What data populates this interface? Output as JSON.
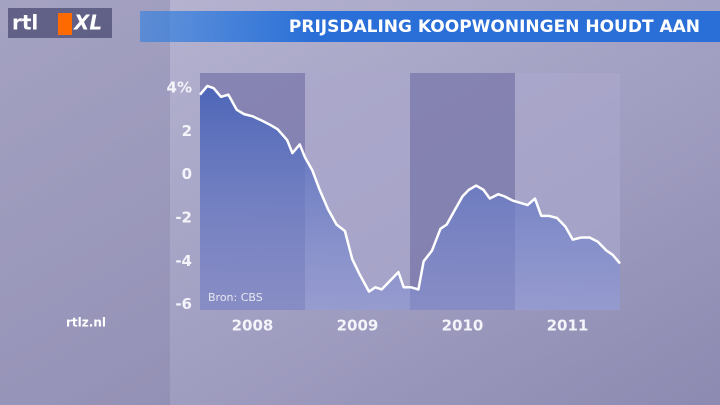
{
  "logo": {
    "brand": "rtl",
    "product": "XL"
  },
  "website": "rtlz.nl",
  "chart_data": {
    "type": "line",
    "title": "PRIJSDALING KOOPWONINGEN HOUDT AAN",
    "source": "Bron: CBS",
    "x": [
      2008.0,
      2008.07,
      2008.13,
      2008.2,
      2008.27,
      2008.35,
      2008.42,
      2008.5,
      2008.59,
      2008.67,
      2008.74,
      2008.83,
      2008.88,
      2008.95,
      2009.0,
      2009.07,
      2009.14,
      2009.22,
      2009.3,
      2009.38,
      2009.45,
      2009.52,
      2009.61,
      2009.67,
      2009.73,
      2009.81,
      2009.89,
      2009.94,
      2010.01,
      2010.08,
      2010.13,
      2010.21,
      2010.29,
      2010.35,
      2010.43,
      2010.5,
      2010.56,
      2010.63,
      2010.7,
      2010.76,
      2010.84,
      2010.9,
      2010.98,
      2011.05,
      2011.12,
      2011.19,
      2011.25,
      2011.32,
      2011.4,
      2011.48,
      2011.55,
      2011.63,
      2011.71,
      2011.79,
      2011.87,
      2011.93,
      2012.0
    ],
    "values": [
      3.7,
      4.1,
      4.0,
      3.6,
      3.7,
      3.0,
      2.8,
      2.7,
      2.5,
      2.3,
      2.1,
      1.6,
      1.0,
      1.4,
      0.8,
      0.2,
      -0.7,
      -1.6,
      -2.3,
      -2.6,
      -3.9,
      -4.6,
      -5.4,
      -5.2,
      -5.3,
      -4.9,
      -4.5,
      -5.2,
      -5.2,
      -5.3,
      -4.0,
      -3.5,
      -2.5,
      -2.3,
      -1.6,
      -1.0,
      -0.7,
      -0.5,
      -0.7,
      -1.1,
      -0.9,
      -1.0,
      -1.2,
      -1.3,
      -1.4,
      -1.1,
      -1.9,
      -1.9,
      -2.0,
      -2.4,
      -3.0,
      -2.9,
      -2.9,
      -3.1,
      -3.5,
      -3.7,
      -4.1
    ],
    "color": "#ffffff",
    "xlim": [
      2008,
      2012
    ],
    "xticks": [
      {
        "value": 2008.5,
        "label": "2008"
      },
      {
        "value": 2009.5,
        "label": "2009"
      },
      {
        "value": 2010.5,
        "label": "2010"
      },
      {
        "value": 2011.5,
        "label": "2011"
      }
    ],
    "ylim": [
      -6.25,
      4.7
    ],
    "yticks": [
      {
        "value": 4,
        "label": "4%"
      },
      2,
      0,
      -2,
      -4,
      -6
    ],
    "grid": false
  }
}
